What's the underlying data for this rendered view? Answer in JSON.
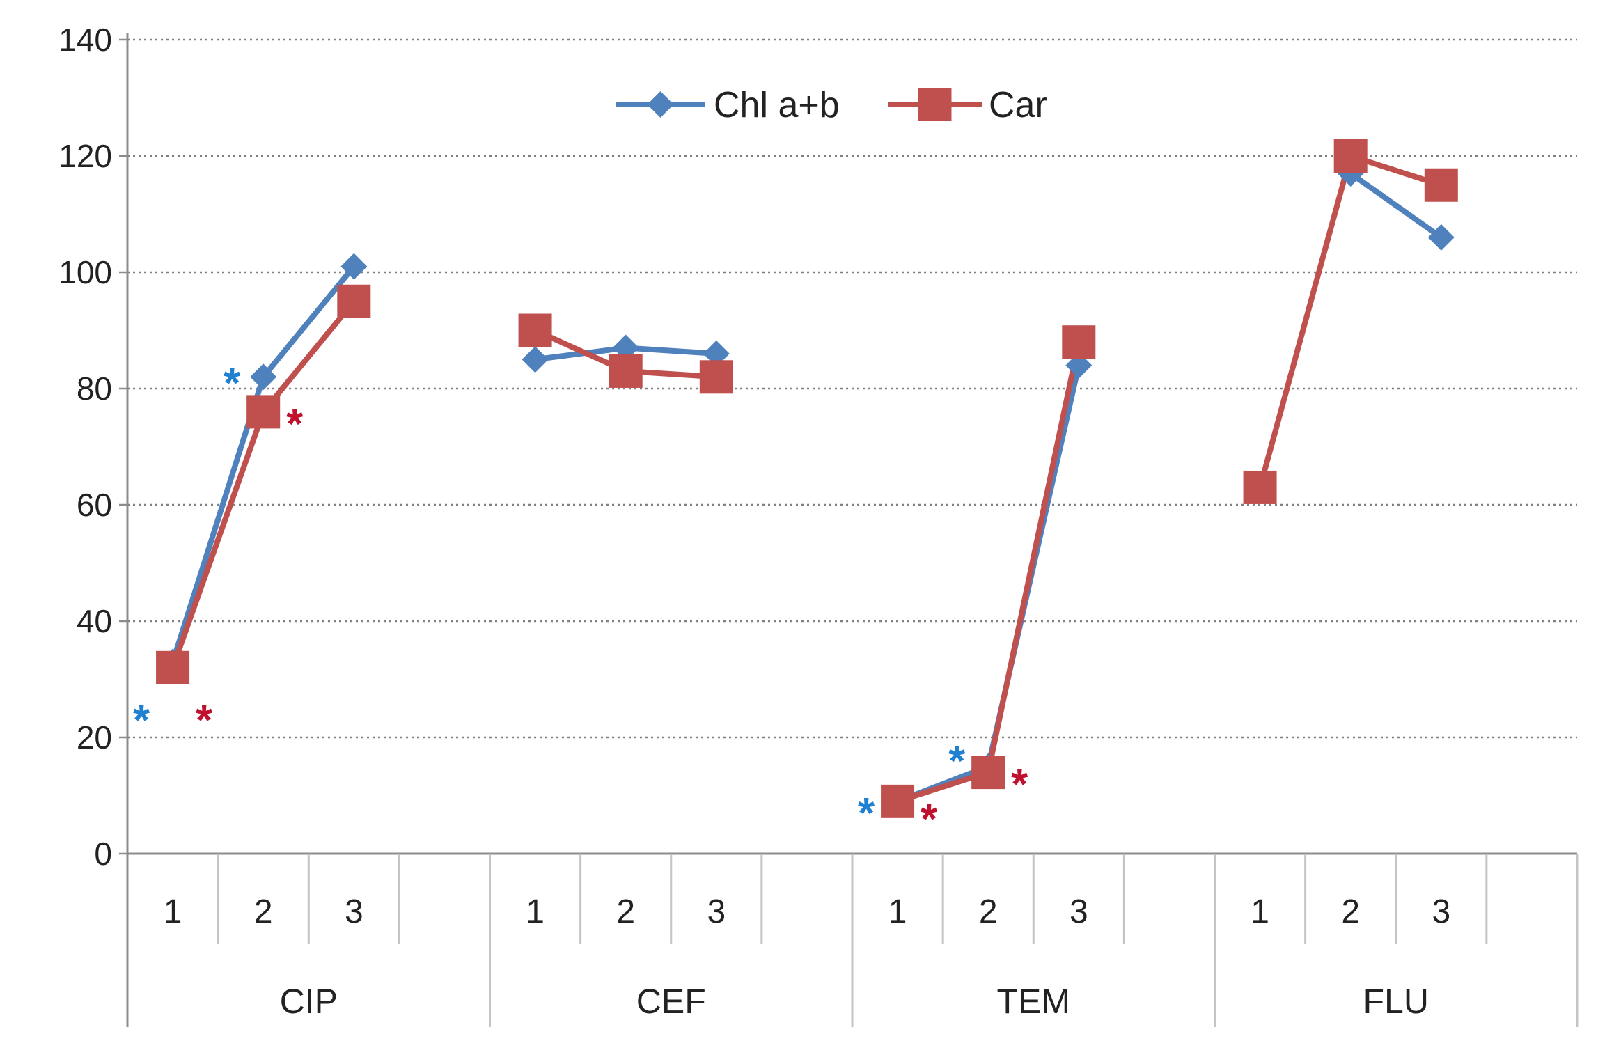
{
  "chart_data": {
    "type": "line",
    "title": "",
    "xlabel": "",
    "ylabel": "",
    "ylim": [
      0,
      140
    ],
    "yticks": [
      0,
      20,
      40,
      60,
      80,
      100,
      120,
      140
    ],
    "grid": "horizontal dotted",
    "legend_position": "top-center",
    "groups": [
      {
        "name": "CIP",
        "categories": [
          "1",
          "2",
          "3"
        ]
      },
      {
        "name": "CEF",
        "categories": [
          "1",
          "2",
          "3"
        ]
      },
      {
        "name": "TEM",
        "categories": [
          "1",
          "2",
          "3"
        ]
      },
      {
        "name": "FLU",
        "categories": [
          "1",
          "2",
          "3"
        ]
      }
    ],
    "series": [
      {
        "name": "Chl a+b",
        "color": "#4F81BD",
        "marker": "diamond",
        "values": [
          [
            33,
            82,
            101
          ],
          [
            85,
            87,
            86
          ],
          [
            9,
            15,
            84
          ],
          [
            null,
            117,
            106
          ]
        ]
      },
      {
        "name": "Car",
        "color": "#C0504D",
        "marker": "square",
        "values": [
          [
            32,
            76,
            95
          ],
          [
            90,
            83,
            82
          ],
          [
            9,
            14,
            88
          ],
          [
            63,
            120,
            115
          ]
        ]
      }
    ],
    "annotations": [
      {
        "text": "*",
        "series": "Chl a+b",
        "group": "CIP",
        "category": "1",
        "y": 24,
        "color": "#1F7FD0"
      },
      {
        "text": "*",
        "series": "Car",
        "group": "CIP",
        "category": "1",
        "y": 24,
        "color": "#C0102E"
      },
      {
        "text": "*",
        "series": "Chl a+b",
        "group": "CIP",
        "category": "2",
        "y": 82,
        "color": "#1F7FD0"
      },
      {
        "text": "*",
        "series": "Car",
        "group": "CIP",
        "category": "2",
        "y": 75,
        "color": "#C0102E"
      },
      {
        "text": "*",
        "series": "Chl a+b",
        "group": "TEM",
        "category": "1",
        "y": 8,
        "color": "#1F7FD0"
      },
      {
        "text": "*",
        "series": "Car",
        "group": "TEM",
        "category": "1",
        "y": 7,
        "color": "#C0102E"
      },
      {
        "text": "*",
        "series": "Chl a+b",
        "group": "TEM",
        "category": "2",
        "y": 17,
        "color": "#1F7FD0"
      },
      {
        "text": "*",
        "series": "Car",
        "group": "TEM",
        "category": "2",
        "y": 13,
        "color": "#C0102E"
      }
    ]
  }
}
